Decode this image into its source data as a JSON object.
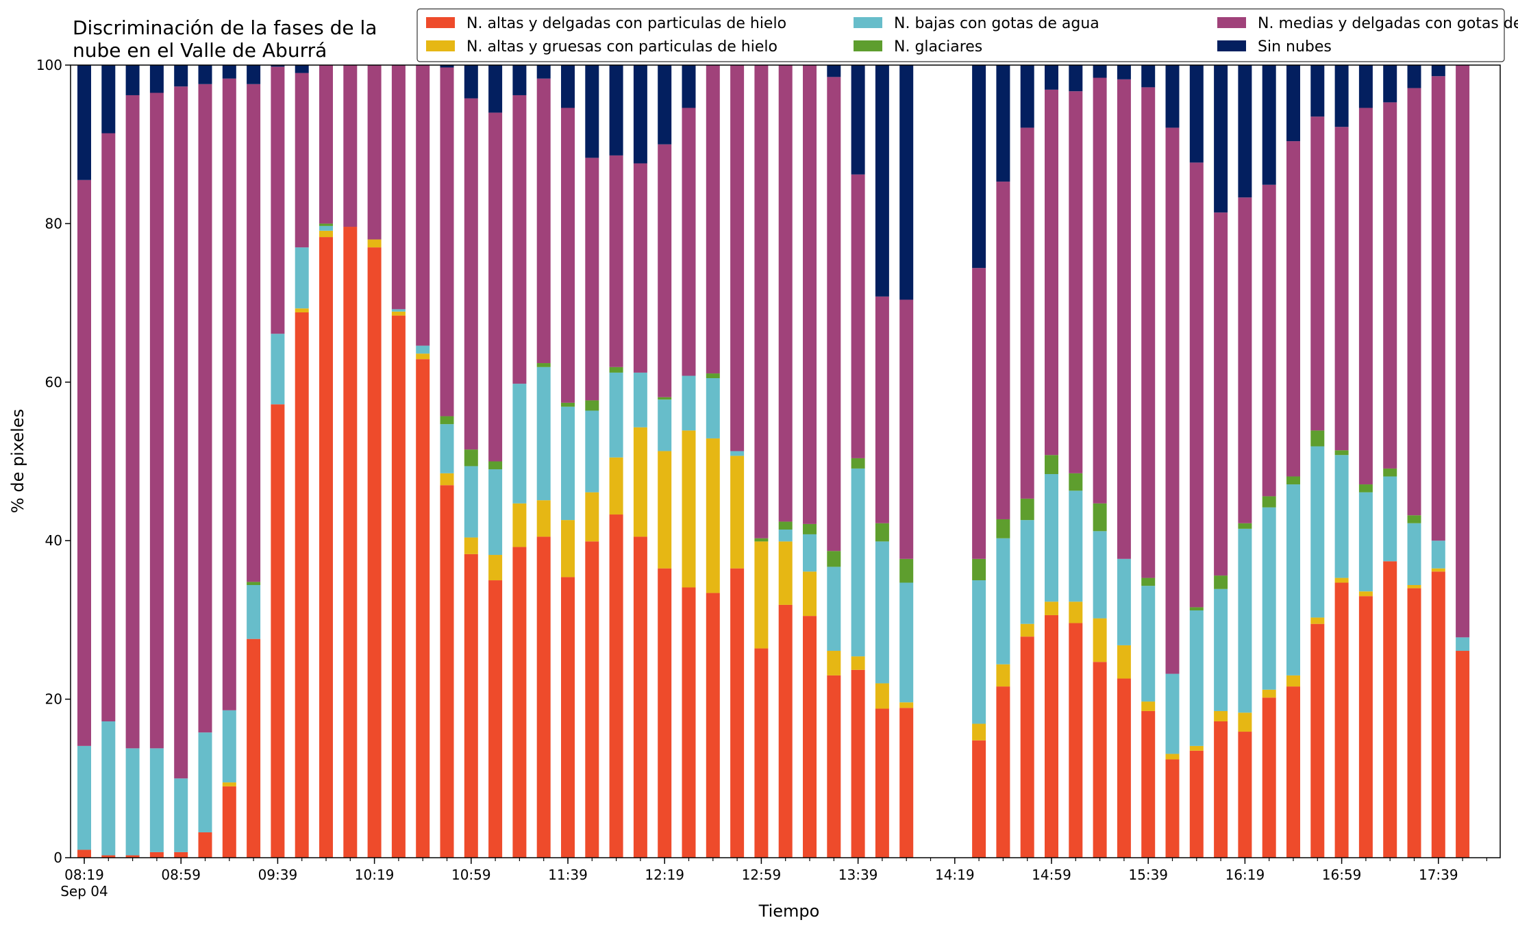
{
  "chart_data": {
    "type": "bar",
    "stacked": true,
    "title": [
      "Discriminación de la fases de la",
      "nube en el Valle de Aburrá"
    ],
    "xlabel": "Tiempo",
    "ylabel": "% de pixeles",
    "ylim": [
      0,
      100
    ],
    "yticks": [
      0,
      20,
      40,
      60,
      80,
      100
    ],
    "grid": false,
    "legend_position": "top-right",
    "time_start": "08:19",
    "time_step_minutes": 10,
    "x_tick_labels": [
      "08:19",
      "08:59",
      "09:39",
      "10:19",
      "10:59",
      "11:39",
      "12:19",
      "12:59",
      "13:39",
      "14:19",
      "14:59",
      "15:39",
      "16:19",
      "16:59",
      "17:39"
    ],
    "x_date_label": "Sep 04",
    "categories": [
      "08:19",
      "08:29",
      "08:39",
      "08:49",
      "08:59",
      "09:09",
      "09:19",
      "09:29",
      "09:39",
      "09:49",
      "09:59",
      "10:09",
      "10:19",
      "10:29",
      "10:39",
      "10:49",
      "10:59",
      "11:09",
      "11:19",
      "11:29",
      "11:39",
      "11:49",
      "11:59",
      "12:09",
      "12:19",
      "12:29",
      "12:39",
      "12:49",
      "12:59",
      "13:09",
      "13:19",
      "13:29",
      "13:39",
      "13:49",
      "13:59",
      "14:09",
      "14:19",
      "14:29",
      "14:39",
      "14:49",
      "14:59",
      "15:09",
      "15:19",
      "15:29",
      "15:39",
      "15:49",
      "15:59",
      "16:09",
      "16:19",
      "16:29",
      "16:39",
      "16:49",
      "16:59",
      "17:09",
      "17:19",
      "17:29",
      "17:39",
      "17:49"
    ],
    "series": [
      {
        "name": "N. altas y delgadas con particulas de hielo",
        "color": "#ee4b2b",
        "values": [
          1.0,
          0.3,
          0.3,
          0.7,
          0.7,
          3.2,
          9.0,
          27.6,
          57.2,
          68.8,
          78.3,
          79.6,
          77.0,
          68.4,
          62.9,
          47.0,
          38.3,
          35.0,
          39.2,
          40.5,
          35.4,
          39.9,
          43.3,
          40.5,
          36.5,
          34.1,
          33.4,
          36.5,
          26.4,
          31.9,
          30.5,
          23.0,
          23.7,
          18.8,
          18.9,
          0,
          0,
          14.8,
          21.6,
          27.9,
          30.6,
          29.6,
          24.7,
          22.6,
          18.5,
          12.4,
          13.5,
          17.2,
          15.9,
          20.2,
          21.6,
          29.5,
          34.7,
          33.0,
          37.4,
          34.0,
          36.1,
          26.1
        ]
      },
      {
        "name": "N. altas y gruesas con particulas de hielo",
        "color": "#e6b714",
        "values": [
          0,
          0,
          0,
          0,
          0,
          0,
          0.5,
          0,
          0,
          0.5,
          0.8,
          0,
          1.0,
          0.5,
          0.7,
          1.5,
          2.1,
          3.2,
          5.5,
          4.6,
          7.2,
          6.2,
          7.2,
          13.8,
          14.8,
          19.8,
          19.5,
          14.2,
          13.5,
          8.0,
          5.6,
          3.1,
          1.7,
          3.2,
          0.7,
          0,
          0,
          2.1,
          2.8,
          1.6,
          1.7,
          2.7,
          5.5,
          4.2,
          1.2,
          0.7,
          0.6,
          1.3,
          2.4,
          1.0,
          1.4,
          0.8,
          0.6,
          0.6,
          0,
          0.4,
          0.4,
          0
        ]
      },
      {
        "name": "N. bajas con gotas de agua",
        "color": "#67bdca",
        "values": [
          13.1,
          16.9,
          13.5,
          13.1,
          9.3,
          12.6,
          9.1,
          6.8,
          8.9,
          7.7,
          0.6,
          0,
          0,
          0.3,
          1.0,
          6.2,
          9.0,
          10.8,
          15.1,
          16.8,
          14.3,
          10.3,
          10.7,
          6.9,
          6.5,
          6.9,
          7.6,
          0.6,
          0,
          1.5,
          4.7,
          10.6,
          23.7,
          17.9,
          15.1,
          0,
          0,
          18.1,
          15.9,
          13.1,
          16.1,
          14.0,
          11.0,
          10.9,
          14.6,
          10.1,
          17.1,
          15.4,
          23.2,
          23.0,
          24.1,
          21.6,
          15.5,
          12.5,
          10.7,
          7.8,
          3.5,
          1.7
        ]
      },
      {
        "name": "N. glaciares",
        "color": "#5e9e2e",
        "values": [
          0,
          0,
          0,
          0,
          0,
          0,
          0,
          0.4,
          0,
          0,
          0.3,
          0,
          0,
          0,
          0,
          1.0,
          2.1,
          1.0,
          0,
          0.5,
          0.5,
          1.3,
          0.7,
          0,
          0.3,
          0,
          0.6,
          0,
          0.4,
          1.0,
          1.3,
          2.0,
          1.3,
          2.3,
          3.0,
          0,
          0,
          2.7,
          2.4,
          2.7,
          2.4,
          2.2,
          3.5,
          0,
          1.0,
          0,
          0.4,
          1.7,
          0.7,
          1.4,
          1.0,
          2.0,
          0.6,
          1.0,
          1.0,
          1.0,
          0,
          0
        ]
      },
      {
        "name": "N. medias y delgadas con gotas de agua",
        "color": "#a0427a",
        "values": [
          71.4,
          74.2,
          82.4,
          82.7,
          87.3,
          81.8,
          79.7,
          62.8,
          33.7,
          22.0,
          20.0,
          20.4,
          22.0,
          30.8,
          35.4,
          44.0,
          44.3,
          44.0,
          36.4,
          35.9,
          37.2,
          30.6,
          26.7,
          26.4,
          31.9,
          33.8,
          38.9,
          48.7,
          59.7,
          57.6,
          57.9,
          59.8,
          35.8,
          28.6,
          32.7,
          0,
          0,
          36.7,
          42.6,
          46.8,
          46.1,
          48.2,
          53.7,
          60.5,
          61.9,
          68.9,
          56.1,
          45.8,
          41.1,
          39.3,
          42.3,
          39.6,
          40.8,
          47.5,
          46.2,
          53.9,
          58.6,
          72.2
        ]
      },
      {
        "name": "Sin nubes",
        "color": "#031f5f",
        "values": [
          14.5,
          8.6,
          3.8,
          3.5,
          2.7,
          2.4,
          1.7,
          2.4,
          0.2,
          1.0,
          0,
          0,
          0,
          0,
          0,
          0.3,
          4.2,
          6.0,
          3.8,
          1.7,
          5.4,
          11.7,
          11.4,
          12.4,
          10.0,
          5.4,
          0,
          0,
          0,
          0,
          0,
          1.5,
          13.8,
          29.2,
          29.6,
          0,
          0,
          25.6,
          14.7,
          7.9,
          3.1,
          3.3,
          1.6,
          1.8,
          2.8,
          7.9,
          12.3,
          18.6,
          16.7,
          15.1,
          9.6,
          6.5,
          7.8,
          5.4,
          4.7,
          2.9,
          1.4,
          0
        ]
      }
    ]
  }
}
